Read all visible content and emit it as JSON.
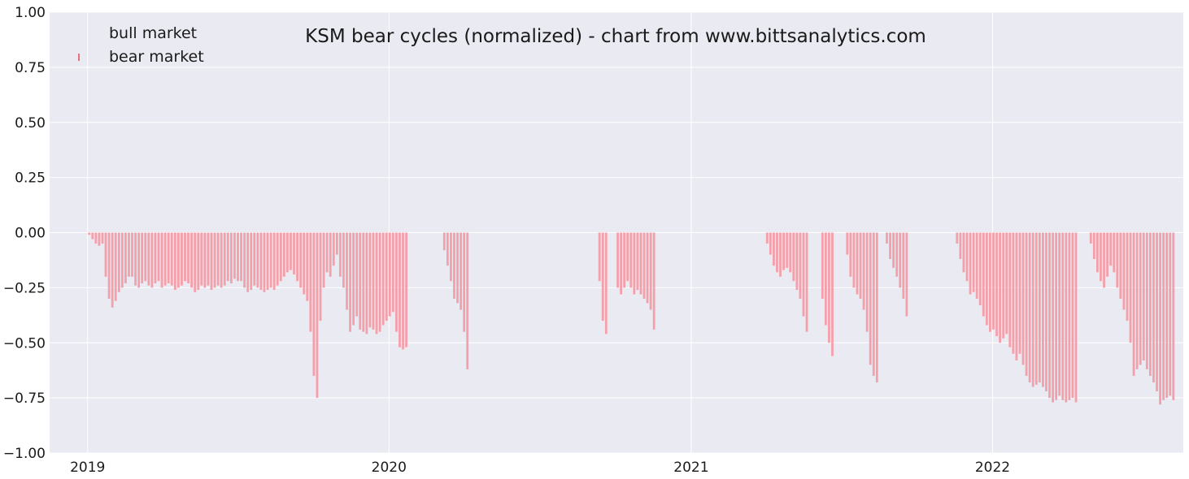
{
  "chart_data": {
    "type": "bar",
    "title": "KSM bear cycles (normalized)  - chart from www.bittsanalytics.com",
    "xlabel": "",
    "ylabel": "",
    "ylim": [
      -1.0,
      1.0
    ],
    "xlim": [
      "2018-11-16",
      "2022-08-20"
    ],
    "yticks": [
      1.0,
      0.75,
      0.5,
      0.25,
      0.0,
      -0.25,
      -0.5,
      -0.75,
      -1.0
    ],
    "ytick_labels": [
      "1.00",
      "0.75",
      "0.50",
      "0.25",
      "0.00",
      "−0.25",
      "−0.50",
      "−0.75",
      "−1.00"
    ],
    "xticks": [
      "2019-01-01",
      "2020-01-01",
      "2021-01-01",
      "2022-01-01"
    ],
    "xtick_labels": [
      "2019",
      "2020",
      "2021",
      "2022"
    ],
    "grid": true,
    "legend_position": "top-left",
    "series": [
      {
        "name": "bull market",
        "color": "#eaeaf2",
        "points": []
      },
      {
        "name": "bear market",
        "color": "#f4a0aa",
        "points": [
          [
            "2019-01-03",
            -0.01
          ],
          [
            "2019-01-07",
            -0.03
          ],
          [
            "2019-01-11",
            -0.05
          ],
          [
            "2019-01-15",
            -0.06
          ],
          [
            "2019-01-19",
            -0.05
          ],
          [
            "2019-01-23",
            -0.2
          ],
          [
            "2019-01-27",
            -0.3
          ],
          [
            "2019-01-31",
            -0.34
          ],
          [
            "2019-02-04",
            -0.31
          ],
          [
            "2019-02-08",
            -0.27
          ],
          [
            "2019-02-12",
            -0.25
          ],
          [
            "2019-02-16",
            -0.23
          ],
          [
            "2019-02-20",
            -0.2
          ],
          [
            "2019-02-24",
            -0.2
          ],
          [
            "2019-02-28",
            -0.24
          ],
          [
            "2019-03-04",
            -0.25
          ],
          [
            "2019-03-08",
            -0.23
          ],
          [
            "2019-03-12",
            -0.22
          ],
          [
            "2019-03-16",
            -0.24
          ],
          [
            "2019-03-20",
            -0.25
          ],
          [
            "2019-03-24",
            -0.23
          ],
          [
            "2019-03-28",
            -0.22
          ],
          [
            "2019-04-01",
            -0.25
          ],
          [
            "2019-04-05",
            -0.24
          ],
          [
            "2019-04-09",
            -0.23
          ],
          [
            "2019-04-13",
            -0.24
          ],
          [
            "2019-04-17",
            -0.26
          ],
          [
            "2019-04-21",
            -0.25
          ],
          [
            "2019-04-25",
            -0.24
          ],
          [
            "2019-04-29",
            -0.22
          ],
          [
            "2019-05-03",
            -0.23
          ],
          [
            "2019-05-07",
            -0.25
          ],
          [
            "2019-05-11",
            -0.27
          ],
          [
            "2019-05-15",
            -0.26
          ],
          [
            "2019-05-19",
            -0.24
          ],
          [
            "2019-05-23",
            -0.25
          ],
          [
            "2019-05-27",
            -0.24
          ],
          [
            "2019-05-31",
            -0.26
          ],
          [
            "2019-06-04",
            -0.25
          ],
          [
            "2019-06-08",
            -0.24
          ],
          [
            "2019-06-12",
            -0.25
          ],
          [
            "2019-06-16",
            -0.24
          ],
          [
            "2019-06-20",
            -0.22
          ],
          [
            "2019-06-24",
            -0.23
          ],
          [
            "2019-06-28",
            -0.21
          ],
          [
            "2019-07-02",
            -0.22
          ],
          [
            "2019-07-06",
            -0.22
          ],
          [
            "2019-07-10",
            -0.25
          ],
          [
            "2019-07-14",
            -0.27
          ],
          [
            "2019-07-18",
            -0.26
          ],
          [
            "2019-07-22",
            -0.24
          ],
          [
            "2019-07-26",
            -0.25
          ],
          [
            "2019-07-30",
            -0.26
          ],
          [
            "2019-08-03",
            -0.27
          ],
          [
            "2019-08-07",
            -0.26
          ],
          [
            "2019-08-11",
            -0.25
          ],
          [
            "2019-08-15",
            -0.26
          ],
          [
            "2019-08-19",
            -0.24
          ],
          [
            "2019-08-23",
            -0.22
          ],
          [
            "2019-08-27",
            -0.2
          ],
          [
            "2019-08-31",
            -0.18
          ],
          [
            "2019-09-04",
            -0.17
          ],
          [
            "2019-09-08",
            -0.19
          ],
          [
            "2019-09-12",
            -0.22
          ],
          [
            "2019-09-16",
            -0.25
          ],
          [
            "2019-09-20",
            -0.28
          ],
          [
            "2019-09-24",
            -0.31
          ],
          [
            "2019-09-28",
            -0.45
          ],
          [
            "2019-10-02",
            -0.65
          ],
          [
            "2019-10-06",
            -0.75
          ],
          [
            "2019-10-10",
            -0.4
          ],
          [
            "2019-10-14",
            -0.25
          ],
          [
            "2019-10-18",
            -0.18
          ],
          [
            "2019-10-22",
            -0.2
          ],
          [
            "2019-10-26",
            -0.15
          ],
          [
            "2019-10-30",
            -0.1
          ],
          [
            "2019-11-03",
            -0.2
          ],
          [
            "2019-11-07",
            -0.25
          ],
          [
            "2019-11-11",
            -0.35
          ],
          [
            "2019-11-15",
            -0.45
          ],
          [
            "2019-11-19",
            -0.42
          ],
          [
            "2019-11-23",
            -0.38
          ],
          [
            "2019-11-27",
            -0.44
          ],
          [
            "2019-12-01",
            -0.45
          ],
          [
            "2019-12-05",
            -0.46
          ],
          [
            "2019-12-09",
            -0.43
          ],
          [
            "2019-12-13",
            -0.44
          ],
          [
            "2019-12-17",
            -0.46
          ],
          [
            "2019-12-21",
            -0.45
          ],
          [
            "2019-12-25",
            -0.42
          ],
          [
            "2019-12-29",
            -0.4
          ],
          [
            "2020-01-02",
            -0.38
          ],
          [
            "2020-01-06",
            -0.36
          ],
          [
            "2020-01-10",
            -0.45
          ],
          [
            "2020-01-14",
            -0.52
          ],
          [
            "2020-01-18",
            -0.53
          ],
          [
            "2020-01-22",
            -0.52
          ],
          [
            "2020-03-08",
            -0.08
          ],
          [
            "2020-03-12",
            -0.15
          ],
          [
            "2020-03-16",
            -0.22
          ],
          [
            "2020-03-20",
            -0.3
          ],
          [
            "2020-03-24",
            -0.32
          ],
          [
            "2020-03-28",
            -0.35
          ],
          [
            "2020-04-01",
            -0.45
          ],
          [
            "2020-04-05",
            -0.62
          ],
          [
            "2020-09-12",
            -0.22
          ],
          [
            "2020-09-16",
            -0.4
          ],
          [
            "2020-09-20",
            -0.46
          ],
          [
            "2020-10-04",
            -0.25
          ],
          [
            "2020-10-08",
            -0.28
          ],
          [
            "2020-10-12",
            -0.25
          ],
          [
            "2020-10-16",
            -0.22
          ],
          [
            "2020-10-20",
            -0.25
          ],
          [
            "2020-10-24",
            -0.28
          ],
          [
            "2020-10-28",
            -0.26
          ],
          [
            "2020-11-01",
            -0.28
          ],
          [
            "2020-11-05",
            -0.3
          ],
          [
            "2020-11-09",
            -0.32
          ],
          [
            "2020-11-13",
            -0.35
          ],
          [
            "2020-11-17",
            -0.44
          ],
          [
            "2021-04-03",
            -0.05
          ],
          [
            "2021-04-07",
            -0.1
          ],
          [
            "2021-04-11",
            -0.15
          ],
          [
            "2021-04-15",
            -0.18
          ],
          [
            "2021-04-19",
            -0.2
          ],
          [
            "2021-04-23",
            -0.17
          ],
          [
            "2021-04-27",
            -0.16
          ],
          [
            "2021-05-01",
            -0.18
          ],
          [
            "2021-05-05",
            -0.22
          ],
          [
            "2021-05-09",
            -0.26
          ],
          [
            "2021-05-13",
            -0.3
          ],
          [
            "2021-05-17",
            -0.38
          ],
          [
            "2021-05-21",
            -0.45
          ],
          [
            "2021-06-09",
            -0.3
          ],
          [
            "2021-06-13",
            -0.42
          ],
          [
            "2021-06-17",
            -0.5
          ],
          [
            "2021-06-21",
            -0.56
          ],
          [
            "2021-07-09",
            -0.1
          ],
          [
            "2021-07-13",
            -0.2
          ],
          [
            "2021-07-17",
            -0.25
          ],
          [
            "2021-07-21",
            -0.28
          ],
          [
            "2021-07-25",
            -0.3
          ],
          [
            "2021-07-29",
            -0.35
          ],
          [
            "2021-08-02",
            -0.45
          ],
          [
            "2021-08-06",
            -0.6
          ],
          [
            "2021-08-10",
            -0.65
          ],
          [
            "2021-08-14",
            -0.68
          ],
          [
            "2021-08-26",
            -0.05
          ],
          [
            "2021-08-30",
            -0.12
          ],
          [
            "2021-09-03",
            -0.16
          ],
          [
            "2021-09-07",
            -0.2
          ],
          [
            "2021-09-11",
            -0.25
          ],
          [
            "2021-09-15",
            -0.3
          ],
          [
            "2021-09-19",
            -0.38
          ],
          [
            "2021-11-19",
            -0.05
          ],
          [
            "2021-11-23",
            -0.12
          ],
          [
            "2021-11-27",
            -0.18
          ],
          [
            "2021-12-01",
            -0.22
          ],
          [
            "2021-12-05",
            -0.28
          ],
          [
            "2021-12-09",
            -0.27
          ],
          [
            "2021-12-13",
            -0.3
          ],
          [
            "2021-12-17",
            -0.33
          ],
          [
            "2021-12-21",
            -0.38
          ],
          [
            "2021-12-25",
            -0.42
          ],
          [
            "2021-12-29",
            -0.45
          ],
          [
            "2022-01-02",
            -0.44
          ],
          [
            "2022-01-06",
            -0.47
          ],
          [
            "2022-01-10",
            -0.5
          ],
          [
            "2022-01-14",
            -0.48
          ],
          [
            "2022-01-18",
            -0.46
          ],
          [
            "2022-01-22",
            -0.52
          ],
          [
            "2022-01-26",
            -0.55
          ],
          [
            "2022-01-30",
            -0.58
          ],
          [
            "2022-02-03",
            -0.55
          ],
          [
            "2022-02-07",
            -0.6
          ],
          [
            "2022-02-11",
            -0.65
          ],
          [
            "2022-02-15",
            -0.68
          ],
          [
            "2022-02-19",
            -0.7
          ],
          [
            "2022-02-23",
            -0.69
          ],
          [
            "2022-02-27",
            -0.68
          ],
          [
            "2022-03-03",
            -0.7
          ],
          [
            "2022-03-07",
            -0.72
          ],
          [
            "2022-03-11",
            -0.75
          ],
          [
            "2022-03-15",
            -0.77
          ],
          [
            "2022-03-19",
            -0.76
          ],
          [
            "2022-03-23",
            -0.74
          ],
          [
            "2022-03-27",
            -0.76
          ],
          [
            "2022-03-31",
            -0.77
          ],
          [
            "2022-04-04",
            -0.76
          ],
          [
            "2022-04-08",
            -0.75
          ],
          [
            "2022-04-12",
            -0.77
          ],
          [
            "2022-04-30",
            -0.05
          ],
          [
            "2022-05-04",
            -0.12
          ],
          [
            "2022-05-08",
            -0.18
          ],
          [
            "2022-05-12",
            -0.22
          ],
          [
            "2022-05-16",
            -0.25
          ],
          [
            "2022-05-20",
            -0.2
          ],
          [
            "2022-05-24",
            -0.15
          ],
          [
            "2022-05-28",
            -0.18
          ],
          [
            "2022-06-01",
            -0.25
          ],
          [
            "2022-06-05",
            -0.3
          ],
          [
            "2022-06-09",
            -0.35
          ],
          [
            "2022-06-13",
            -0.4
          ],
          [
            "2022-06-17",
            -0.5
          ],
          [
            "2022-06-21",
            -0.65
          ],
          [
            "2022-06-25",
            -0.62
          ],
          [
            "2022-06-29",
            -0.6
          ],
          [
            "2022-07-03",
            -0.58
          ],
          [
            "2022-07-07",
            -0.62
          ],
          [
            "2022-07-11",
            -0.65
          ],
          [
            "2022-07-15",
            -0.68
          ],
          [
            "2022-07-19",
            -0.72
          ],
          [
            "2022-07-23",
            -0.78
          ],
          [
            "2022-07-27",
            -0.76
          ],
          [
            "2022-07-31",
            -0.75
          ],
          [
            "2022-08-04",
            -0.74
          ],
          [
            "2022-08-08",
            -0.76
          ]
        ]
      }
    ]
  }
}
